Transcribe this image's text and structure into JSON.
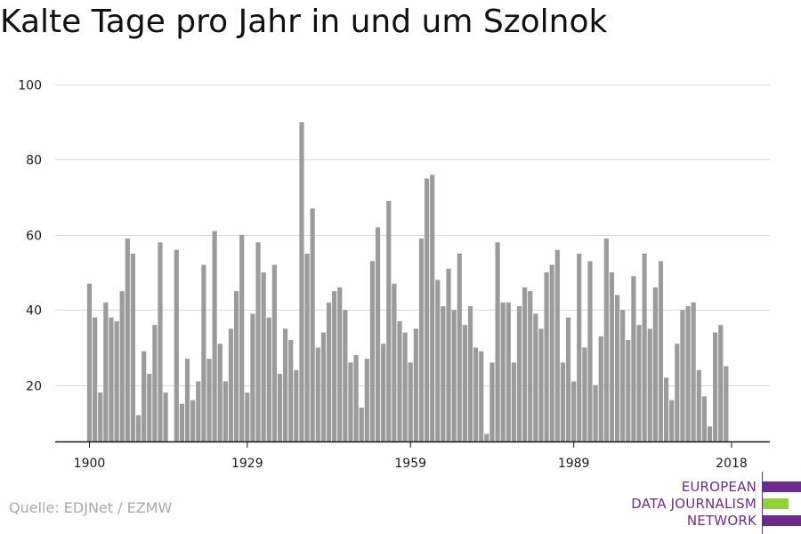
{
  "title": "Kalte Tage pro Jahr in und um Szolnok",
  "source": "Quelle: EDJNet / EZMW",
  "logo": {
    "lines": [
      "EUROPEAN",
      "DATA JOURNALISM",
      "NETWORK"
    ],
    "colors": {
      "purple": "#6a2d8c",
      "green": "#8fd13a"
    }
  },
  "colors": {
    "bar": "#9b9b9b",
    "grid": "#d9d9d9",
    "axis": "#1a1a1a"
  },
  "chart_data": {
    "type": "bar",
    "title": "Kalte Tage pro Jahr in und um Szolnok",
    "xlabel": "",
    "ylabel": "",
    "ylim": [
      5,
      100
    ],
    "yticks": [
      20,
      40,
      60,
      80,
      100
    ],
    "xticks": [
      1900,
      1929,
      1959,
      1989,
      2018
    ],
    "grid": "horizontal",
    "series": [
      {
        "x": [
          1900,
          1901,
          1902,
          1903,
          1904,
          1905,
          1906,
          1907,
          1908,
          1909,
          1910,
          1911,
          1912,
          1913,
          1914,
          1915,
          1916,
          1917,
          1918,
          1919,
          1920,
          1921,
          1922,
          1923,
          1924,
          1925,
          1926,
          1927,
          1928,
          1929,
          1930,
          1931,
          1932,
          1933,
          1934,
          1935,
          1936,
          1937,
          1938,
          1939,
          1940,
          1941,
          1942,
          1943,
          1944,
          1945,
          1946,
          1947,
          1948,
          1949,
          1950,
          1951,
          1952,
          1953,
          1954,
          1955,
          1956,
          1957,
          1958,
          1959,
          1960,
          1961,
          1962,
          1963,
          1964,
          1965,
          1966,
          1967,
          1968,
          1969,
          1970,
          1971,
          1972,
          1973,
          1974,
          1975,
          1976,
          1977,
          1978,
          1979,
          1980,
          1981,
          1982,
          1983,
          1984,
          1985,
          1986,
          1987,
          1988,
          1989,
          1990,
          1991,
          1992,
          1993,
          1994,
          1995,
          1996,
          1997,
          1998,
          1999,
          2000,
          2001,
          2002,
          2003,
          2004,
          2005,
          2006,
          2007,
          2008,
          2009,
          2010,
          2011,
          2012,
          2013,
          2014,
          2015,
          2016,
          2017,
          2018
        ],
        "values": [
          47,
          38,
          18,
          42,
          38,
          37,
          45,
          59,
          55,
          12,
          29,
          23,
          36,
          58,
          18,
          5,
          56,
          15,
          27,
          16,
          21,
          52,
          27,
          61,
          31,
          21,
          35,
          45,
          60,
          18,
          39,
          58,
          50,
          38,
          52,
          23,
          35,
          32,
          24,
          90,
          55,
          67,
          30,
          34,
          42,
          45,
          46,
          40,
          26,
          28,
          14,
          27,
          53,
          62,
          31,
          69,
          47,
          37,
          34,
          26,
          35,
          59,
          75,
          76,
          48,
          41,
          51,
          40,
          55,
          36,
          41,
          30,
          29,
          7,
          26,
          58,
          42,
          42,
          26,
          41,
          46,
          45,
          39,
          35,
          50,
          52,
          56,
          26,
          38,
          21,
          55,
          30,
          53,
          20,
          33,
          59,
          50,
          44,
          40,
          32,
          49,
          36,
          55,
          35,
          46,
          53,
          22,
          16,
          31,
          40,
          41,
          42,
          24,
          17,
          9,
          34,
          36,
          25,
          null
        ]
      }
    ]
  }
}
